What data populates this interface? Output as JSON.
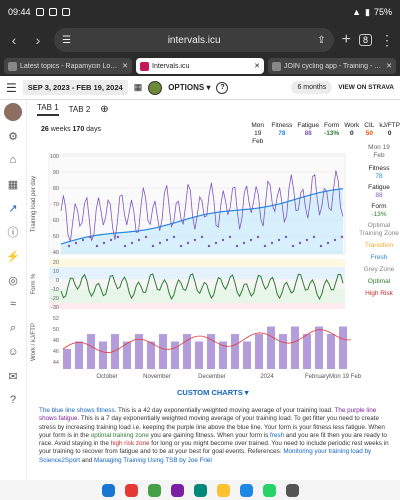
{
  "status": {
    "time": "09:44",
    "battery": "75%"
  },
  "browser": {
    "url": "intervals.icu",
    "tab_count": "8",
    "tabs": [
      {
        "title": "Latest topics - Rapamycin Lon..."
      },
      {
        "title": "Intervals.icu"
      },
      {
        "title": "JOIN cycling app - Training - Tr..."
      }
    ]
  },
  "app": {
    "date_range": "SEP 3, 2023 - FEB 19, 2024",
    "options": "OPTIONS",
    "months": "6 months",
    "strava": "VIEW ON STRAVA"
  },
  "tabs": {
    "tab1": "TAB 1",
    "tab2": "TAB 2"
  },
  "summary": {
    "weeks": "26",
    "days": "170"
  },
  "stats": {
    "date": "Mon 19 Feb",
    "fitness_label": "Fitness",
    "fitness": "78",
    "fatigue_label": "Fatigue",
    "fatigue": "88",
    "form_label": "Form",
    "form": "-13%",
    "work_label": "Work",
    "work": "0",
    "cil_label": "CIL",
    "cil": "50",
    "kjftp_label": "kJ/FTP",
    "kjftp": "0"
  },
  "right": {
    "date1": "Mon 19",
    "date2": "Feb",
    "fitness_label": "Fitness",
    "fitness": "78",
    "fatigue_label": "Fatigue",
    "fatigue": "88",
    "form_label": "Form",
    "form": "-13%",
    "optimal": "Optimal Training Zone",
    "transition": "Transition",
    "fresh": "Fresh",
    "grey": "Grey Zone",
    "opt": "Optimal",
    "high": "High Risk"
  },
  "axes": {
    "load_label": "Training load per day",
    "form_label": "Form %",
    "work_label": "Work / kJ/FTP",
    "y_load": [
      "100",
      "90",
      "80",
      "70",
      "60",
      "50",
      "40"
    ],
    "y_form": [
      "20",
      "10",
      "0",
      "-10",
      "-20",
      "-30"
    ],
    "y_work": [
      "52",
      "50",
      "48",
      "46",
      "44"
    ],
    "months": [
      "October",
      "November",
      "December",
      "2024",
      "February",
      "Mon 19 Feb"
    ]
  },
  "custom": "CUSTOM CHARTS",
  "para": {
    "t1": "The blue line shows fitness.",
    "t2": " This is a 42 day exponentially weighted moving average of your training load. ",
    "t3": "The purple line shows fatigue.",
    "t4": " This is a 7 day exponentially weighted moving average of your training load. To get fitter you need to create stress by increasing training load i.e. keeping the purple line above the blue line. Your form is your fitness less fatigue. When your form is in the ",
    "t5": "optimal training zone",
    "t6": " you are gaining fitness. When your form is ",
    "t7": "fresh",
    "t8": " and you are fit then you are ready to race. Avoid staying in the ",
    "t9": "high risk zone",
    "t10": " for long or you might become over trained. You need to include periodic rest weeks in your training to recover from fatigue and to be at your best for goal events. References: ",
    "t11": "Monitoring your training load by Science2Sport",
    "t12": " and ",
    "t13": "Managing Training Using TSB by Joe Friel"
  },
  "colors": {
    "fitness": "#1e88e5",
    "fatigue": "#7e57c2",
    "fresh": "#1e88e5",
    "optimal": "#2e7d32",
    "high": "#c62828",
    "transition": "#f9a825",
    "work": "#b39ddb"
  }
}
